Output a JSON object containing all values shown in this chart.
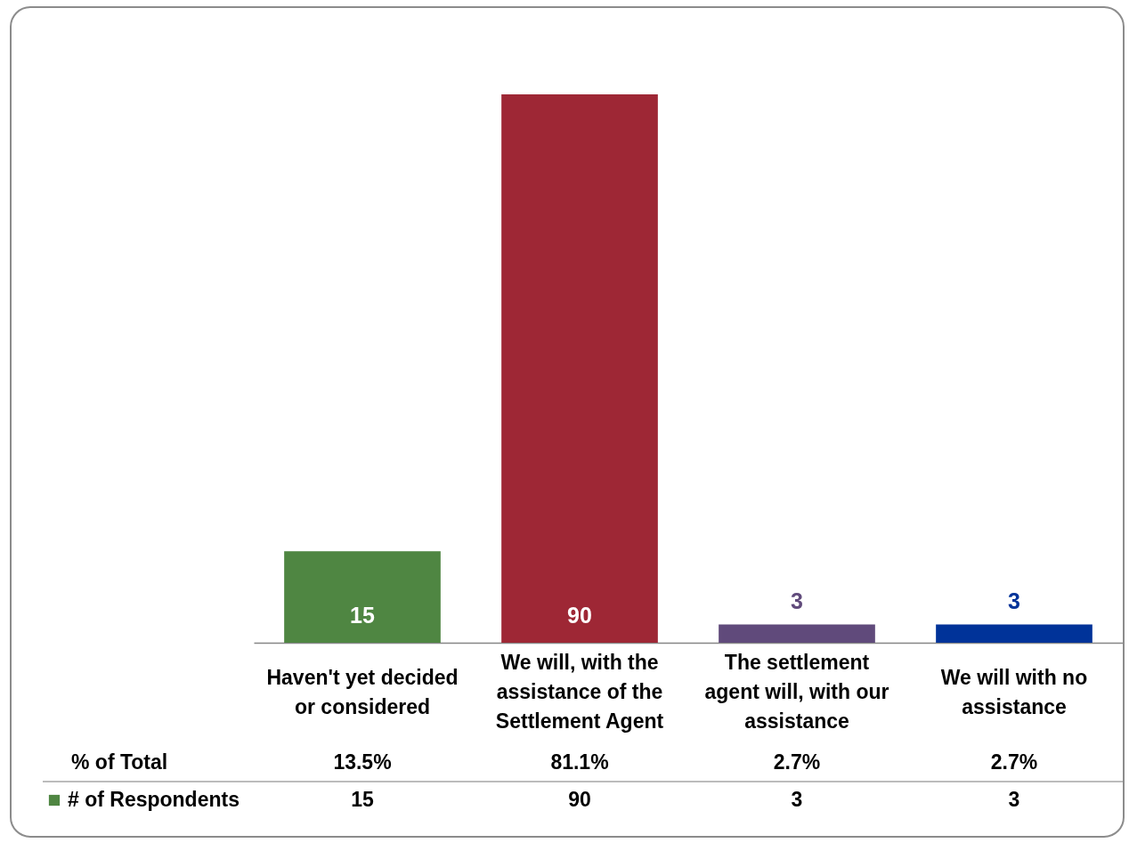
{
  "chart_data": {
    "type": "bar",
    "categories": [
      "Haven't yet decided or considered",
      "We will, with the assistance of the Settlement Agent",
      "The settlement agent will, with our assistance",
      "We will with no assistance"
    ],
    "series": [
      {
        "name": "# of Respondents",
        "color": "#4f8642",
        "colors": [
          "#4f8642",
          "#9e2735",
          "#604a7b",
          "#003399"
        ],
        "values": [
          15,
          90,
          3,
          3
        ]
      }
    ],
    "data_labels": true,
    "legend": "bottom left",
    "annotations": [
      "% of Total",
      "13.5%",
      "81.1%",
      "2.7%",
      "2.7%",
      "15",
      "90",
      "3",
      "3"
    ]
  }
}
